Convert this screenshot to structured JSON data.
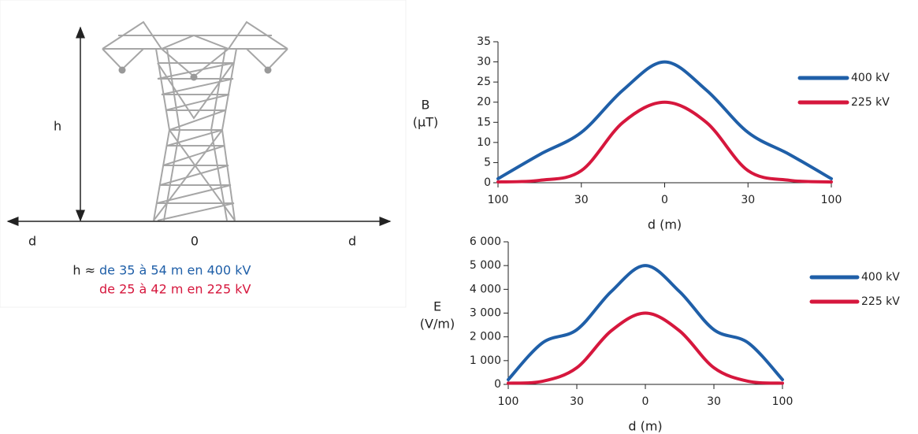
{
  "diagram": {
    "h_label": "h",
    "d_left": "d",
    "zero": "0",
    "d_right": "d",
    "h_approx": "h ≈",
    "h_400": "de 35 à 54 m en 400 kV",
    "h_225": "de 25 à 42 m en 225 kV"
  },
  "chart_data": [
    {
      "type": "line",
      "ylabel": [
        "B",
        "(μT)"
      ],
      "xlabel": "d (m)",
      "categories": [
        "100",
        null,
        "30",
        null,
        "0",
        null,
        "30",
        null,
        "100"
      ],
      "ylim": [
        0,
        35
      ],
      "yticks": [
        0,
        5,
        10,
        15,
        20,
        25,
        30,
        35
      ],
      "grid": false,
      "legend": "right",
      "series": [
        {
          "name": "400 kV",
          "color": "#1f5fa8",
          "values": [
            1,
            7,
            12.5,
            23,
            30,
            23,
            12.5,
            7,
            1
          ]
        },
        {
          "name": "225 kV",
          "color": "#d6173d",
          "values": [
            0.2,
            0.6,
            3,
            15,
            20,
            15,
            3,
            0.6,
            0.2
          ]
        }
      ]
    },
    {
      "type": "line",
      "ylabel": [
        "E",
        "(V/m)"
      ],
      "xlabel": "d (m)",
      "categories": [
        "100",
        null,
        "30",
        null,
        "0",
        null,
        "30",
        null,
        "100"
      ],
      "ylim": [
        0,
        6000
      ],
      "yticks": [
        0,
        {
          "value": 1000,
          "label": "1 000"
        },
        {
          "value": 2000,
          "label": "2 000"
        },
        {
          "value": 3000,
          "label": "3 000"
        },
        {
          "value": 4000,
          "label": "4 000"
        },
        {
          "value": 5000,
          "label": "5 000"
        },
        {
          "value": 6000,
          "label": "6 000"
        }
      ],
      "grid": false,
      "legend": "right",
      "series": [
        {
          "name": "400 kV",
          "color": "#1f5fa8",
          "values": [
            200,
            1750,
            2300,
            3900,
            5000,
            3900,
            2300,
            1750,
            200
          ]
        },
        {
          "name": "225 kV",
          "color": "#d6173d",
          "values": [
            50,
            130,
            700,
            2250,
            3000,
            2250,
            700,
            130,
            50
          ]
        }
      ]
    }
  ]
}
